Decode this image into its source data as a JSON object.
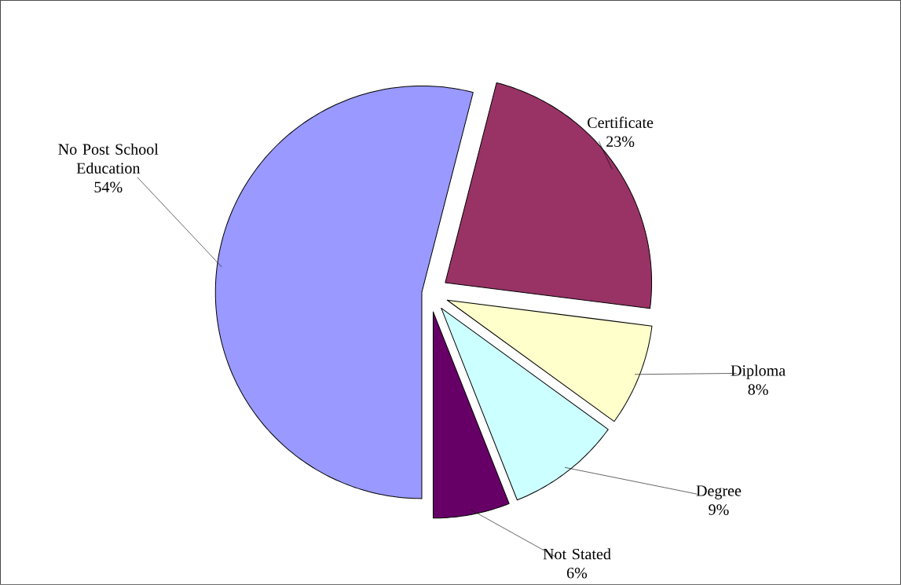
{
  "chart_data": {
    "type": "pie",
    "categories": [
      "Certificate",
      "Diploma",
      "Degree",
      "Not Stated",
      "No Post School Education"
    ],
    "values": [
      23,
      8,
      9,
      6,
      54
    ],
    "value_labels": [
      "23%",
      "8%",
      "9%",
      "6%",
      "54%"
    ],
    "colors": [
      "#993366",
      "#ffffcc",
      "#ccffff",
      "#660066",
      "#9999ff"
    ]
  }
}
